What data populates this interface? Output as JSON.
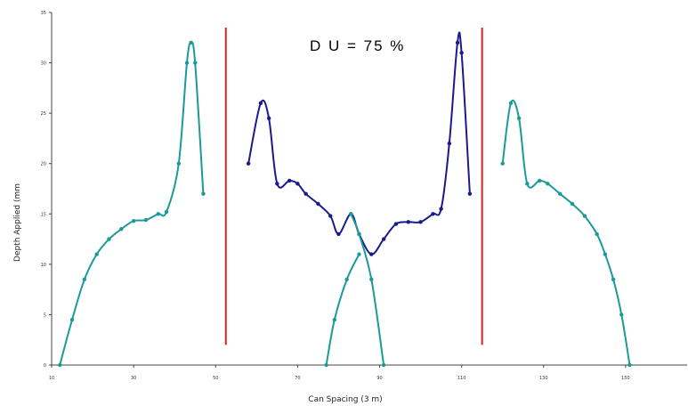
{
  "chart_data": {
    "type": "line",
    "title": "",
    "xlabel": "Can Spacing (3 m)",
    "ylabel": "Depth Applied (mm",
    "annotation": "D U = 75  %",
    "xlim": [
      10,
      165
    ],
    "ylim": [
      0,
      35
    ],
    "xticks": [
      10,
      30,
      50,
      70,
      90,
      110,
      130,
      150
    ],
    "yticks": [
      0,
      5,
      10,
      15,
      20,
      25,
      30,
      35
    ],
    "grid": false,
    "legend": "none",
    "colors": {
      "teal": "#1a9a9a",
      "navy": "#1a1a8c",
      "red": "#e02020"
    },
    "series": [
      {
        "color": "teal",
        "points": [
          [
            12,
            0
          ],
          [
            15,
            4.5
          ],
          [
            18,
            8.5
          ],
          [
            21,
            11
          ],
          [
            24,
            12.5
          ],
          [
            27,
            13.5
          ],
          [
            30,
            14.3
          ],
          [
            33,
            14.4
          ],
          [
            36,
            15
          ],
          [
            38,
            15.2
          ],
          [
            41,
            20
          ],
          [
            43,
            30
          ],
          [
            44,
            32
          ],
          [
            45,
            30
          ],
          [
            47,
            17
          ]
        ]
      },
      {
        "color": "navy",
        "points": [
          [
            58,
            20
          ],
          [
            61,
            26
          ],
          [
            63,
            24.5
          ],
          [
            65,
            18
          ],
          [
            68,
            18.3
          ],
          [
            70,
            18
          ],
          [
            72,
            17
          ],
          [
            75,
            16
          ],
          [
            78,
            14.8
          ],
          [
            80,
            13
          ],
          [
            83,
            15
          ],
          [
            85,
            13
          ],
          [
            88,
            11
          ],
          [
            91,
            12.5
          ],
          [
            94,
            14
          ],
          [
            97,
            14.2
          ],
          [
            100,
            14.2
          ],
          [
            103,
            15
          ],
          [
            105,
            15.5
          ],
          [
            107,
            22
          ],
          [
            109,
            32
          ],
          [
            110,
            31
          ],
          [
            112,
            17
          ]
        ]
      },
      {
        "color": "teal",
        "points": [
          [
            77,
            0
          ],
          [
            79,
            4.5
          ],
          [
            82,
            8.5
          ],
          [
            85,
            11
          ]
        ]
      },
      {
        "color": "teal",
        "points": [
          [
            83,
            15
          ],
          [
            85,
            13
          ],
          [
            88,
            8.5
          ],
          [
            91,
            0
          ]
        ]
      },
      {
        "color": "teal",
        "points": [
          [
            120,
            20
          ],
          [
            122,
            26
          ],
          [
            124,
            24.5
          ],
          [
            126,
            18
          ],
          [
            129,
            18.3
          ],
          [
            131,
            18
          ],
          [
            134,
            17
          ],
          [
            137,
            16
          ],
          [
            140,
            14.8
          ],
          [
            143,
            13
          ],
          [
            145,
            11
          ],
          [
            147,
            8.5
          ],
          [
            149,
            5
          ],
          [
            151,
            0
          ]
        ]
      }
    ],
    "vertical_lines": [
      {
        "color": "red",
        "x": 52.5,
        "y0": 2,
        "y1": 33.5
      },
      {
        "color": "red",
        "x": 115,
        "y0": 2,
        "y1": 33.5
      }
    ]
  }
}
